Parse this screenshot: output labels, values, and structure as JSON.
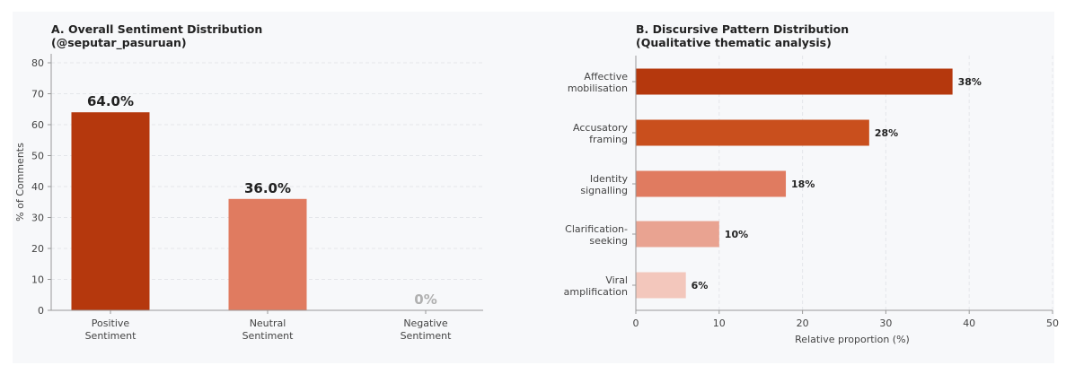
{
  "chart_data": [
    {
      "type": "bar",
      "title_line1": "A. Overall Sentiment Distribution",
      "title_line2": "(@seputar_pasuruan)",
      "ylabel": "% of Comments",
      "ylim": [
        0,
        80
      ],
      "yticks": [
        0,
        10,
        20,
        30,
        40,
        50,
        60,
        70,
        80
      ],
      "grid": true,
      "categories": [
        {
          "line1": "Positive",
          "line2": "Sentiment"
        },
        {
          "line1": "Neutral",
          "line2": "Sentiment"
        },
        {
          "line1": "Negative",
          "line2": "Sentiment"
        }
      ],
      "values": [
        64.0,
        36.0,
        0
      ],
      "value_labels": [
        "64.0%",
        "36.0%",
        "0%"
      ],
      "colors": [
        "#b5380d",
        "#e07b60",
        "#cccccc"
      ],
      "label_colors": [
        "#222222",
        "#222222",
        "#b0b0b0"
      ]
    },
    {
      "type": "bar",
      "orientation": "horizontal",
      "title_line1": "B. Discursive Pattern Distribution",
      "title_line2": "(Qualitative thematic analysis)",
      "xlabel": "Relative proportion (%)",
      "xlim": [
        0,
        50
      ],
      "xticks": [
        0,
        10,
        20,
        30,
        40,
        50
      ],
      "grid": true,
      "categories": [
        {
          "line1": "Affective",
          "line2": "mobilisation"
        },
        {
          "line1": "Accusatory",
          "line2": "framing"
        },
        {
          "line1": "Identity",
          "line2": "signalling"
        },
        {
          "line1": "Clarification-",
          "line2": "seeking"
        },
        {
          "line1": "Viral",
          "line2": "amplification"
        }
      ],
      "values": [
        38,
        28,
        18,
        10,
        6
      ],
      "value_labels": [
        "38%",
        "28%",
        "18%",
        "10%",
        "6%"
      ],
      "colors": [
        "#b5380d",
        "#c94f1d",
        "#e07b60",
        "#e9a391",
        "#f3c7bc"
      ]
    }
  ]
}
